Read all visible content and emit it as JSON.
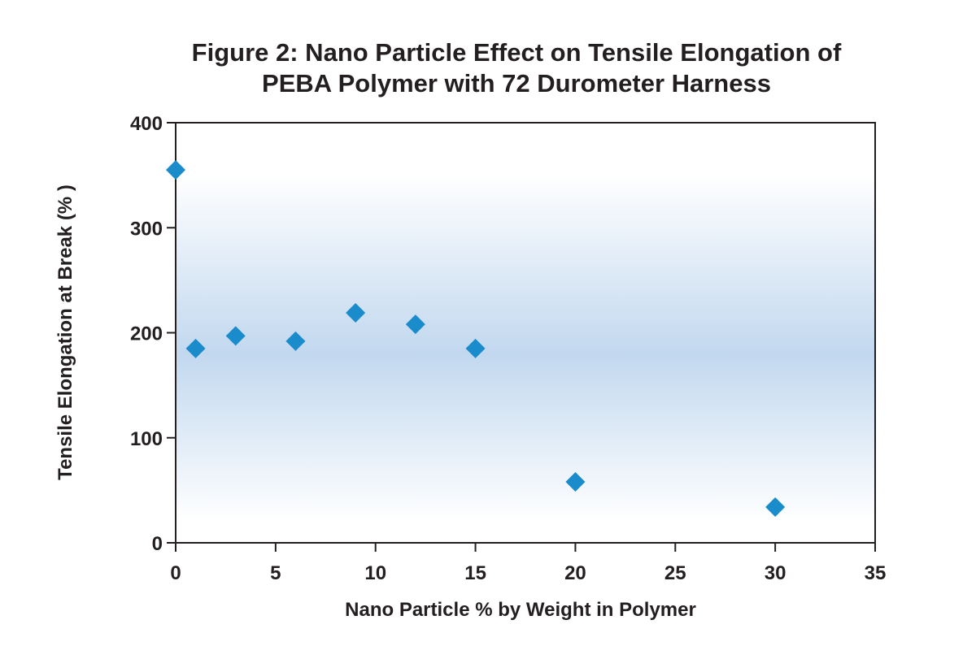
{
  "chart_data": {
    "type": "scatter",
    "title_lines": [
      "Figure 2: Nano Particle Effect on Tensile Elongation of",
      "PEBA Polymer with 72 Durometer Harness"
    ],
    "xlabel": "Nano Particle % by Weight in Polymer",
    "ylabel": "Tensile Elongation at Break (% )",
    "xlim": [
      0,
      35
    ],
    "ylim": [
      0,
      400
    ],
    "xticks": [
      0,
      5,
      10,
      15,
      20,
      25,
      30,
      35
    ],
    "yticks": [
      0,
      100,
      200,
      300,
      400
    ],
    "grid": false,
    "legend": "none",
    "marker": "diamond",
    "series": [
      {
        "points": [
          {
            "x": 0,
            "y": 355
          },
          {
            "x": 1,
            "y": 185
          },
          {
            "x": 3,
            "y": 197
          },
          {
            "x": 6,
            "y": 192
          },
          {
            "x": 9,
            "y": 219
          },
          {
            "x": 12,
            "y": 208
          },
          {
            "x": 15,
            "y": 185
          },
          {
            "x": 20,
            "y": 58
          },
          {
            "x": 30,
            "y": 34
          }
        ]
      }
    ],
    "colors": {
      "marker": "#1a8bcb",
      "axis": "#231f20",
      "background_band": "#c2d8ef"
    }
  }
}
